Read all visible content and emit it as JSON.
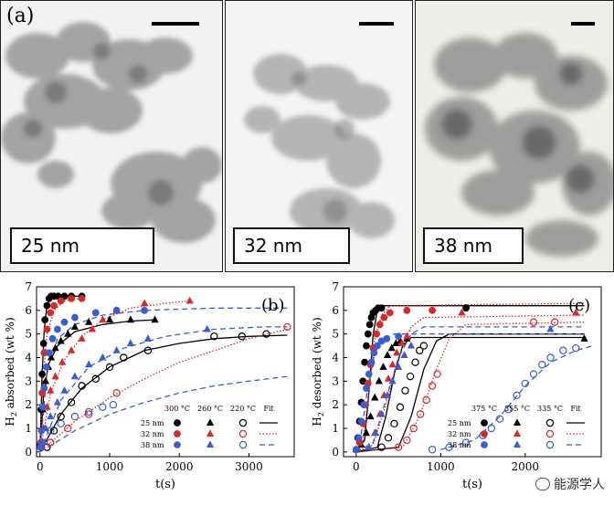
{
  "figure": {
    "tem_panel_label": "(a)",
    "tem": [
      {
        "size_label": "25 nm"
      },
      {
        "size_label": "32 nm"
      },
      {
        "size_label": "38 nm"
      }
    ],
    "watermark": "能源学人"
  },
  "chart_data": [
    {
      "type": "scatter",
      "panel_label": "(b)",
      "ylabel_main": "H",
      "ylabel_sub": "2",
      "ylabel_rest": " absorbed (wt %)",
      "xlabel": "t(s)",
      "xlim": [
        -50,
        3650
      ],
      "ylim": [
        -0.2,
        7
      ],
      "xticks": [
        0,
        1000,
        2000,
        3000
      ],
      "yticks": [
        0,
        1,
        2,
        3,
        4,
        5,
        6,
        7
      ],
      "legend": {
        "headers": [
          "300 °C",
          "260 °C",
          "220 °C",
          "Fit"
        ],
        "rows": [
          "25 nm",
          "32 nm",
          "38 nm"
        ],
        "placement": "bottom-right"
      },
      "series": [
        {
          "size": "25 nm",
          "temp": "300 °C",
          "marker": "circle-filled",
          "color": "#000000",
          "x": [
            5,
            15,
            30,
            50,
            70,
            100,
            130,
            160,
            200,
            260,
            350,
            450,
            600
          ],
          "y": [
            0.3,
            1.8,
            3.3,
            4.6,
            5.6,
            6.2,
            6.5,
            6.6,
            6.6,
            6.6,
            6.6,
            6.6,
            6.6
          ]
        },
        {
          "size": "25 nm",
          "temp": "260 °C",
          "marker": "triangle-filled",
          "color": "#000000",
          "x": [
            10,
            40,
            80,
            120,
            160,
            220,
            300,
            400,
            500,
            700,
            1000,
            1300,
            1650
          ],
          "y": [
            0.3,
            1.8,
            3.0,
            3.6,
            4.0,
            4.4,
            4.7,
            5.0,
            5.3,
            5.5,
            5.6,
            5.6,
            5.6
          ]
        },
        {
          "size": "25 nm",
          "temp": "220 °C",
          "marker": "circle-open",
          "color": "#000000",
          "x": [
            100,
            200,
            300,
            450,
            600,
            800,
            1000,
            1200,
            1550,
            2500,
            2900,
            3250
          ],
          "y": [
            0.2,
            0.9,
            1.5,
            2.1,
            2.8,
            3.1,
            3.6,
            4.0,
            4.3,
            4.9,
            4.9,
            5.0
          ]
        },
        {
          "size": "32 nm",
          "temp": "300 °C",
          "marker": "circle-filled",
          "color": "#d62a2a",
          "x": [
            10,
            30,
            60,
            100,
            150,
            200,
            300,
            450,
            600
          ],
          "y": [
            0.4,
            2.5,
            4.2,
            5.2,
            5.9,
            6.2,
            6.4,
            6.5,
            6.5
          ]
        },
        {
          "size": "32 nm",
          "temp": "260 °C",
          "marker": "triangle-filled",
          "color": "#d62a2a",
          "x": [
            20,
            50,
            100,
            150,
            220,
            320,
            450,
            600,
            750,
            900,
            1100,
            1500,
            2150
          ],
          "y": [
            0.2,
            1.0,
            1.9,
            2.6,
            3.2,
            3.8,
            4.3,
            4.8,
            5.2,
            5.6,
            6.0,
            6.3,
            6.4
          ]
        },
        {
          "size": "32 nm",
          "temp": "220 °C",
          "marker": "circle-open",
          "color": "#d62a2a",
          "x": [
            150,
            400,
            700,
            1100,
            3550
          ],
          "y": [
            0.4,
            1.0,
            1.6,
            2.5,
            5.3
          ]
        },
        {
          "size": "38 nm",
          "temp": "300 °C",
          "marker": "circle-filled",
          "color": "#3a5fcd",
          "x": [
            5,
            20,
            40,
            60,
            90,
            130,
            180,
            250,
            350,
            500,
            800,
            1100,
            1500
          ],
          "y": [
            0.2,
            0.9,
            1.9,
            2.7,
            3.6,
            4.2,
            4.8,
            5.2,
            5.5,
            5.7,
            5.9,
            6.0,
            6.0
          ]
        },
        {
          "size": "38 nm",
          "temp": "260 °C",
          "marker": "triangle-filled",
          "color": "#3a5fcd",
          "x": [
            30,
            80,
            150,
            250,
            350,
            500,
            700,
            900,
            1100,
            1300,
            1550,
            2400
          ],
          "y": [
            0.4,
            1.0,
            1.5,
            2.1,
            2.6,
            3.2,
            3.7,
            4.0,
            4.3,
            4.6,
            4.8,
            5.2
          ]
        },
        {
          "size": "38 nm",
          "temp": "220 °C",
          "marker": "circle-open",
          "color": "#3a5fcd",
          "x": [
            30,
            150,
            300,
            500,
            700,
            900,
            1050
          ],
          "y": [
            0.4,
            0.9,
            1.2,
            1.5,
            1.7,
            1.9,
            2.0
          ]
        }
      ],
      "fits": [
        {
          "color": "#000000",
          "style": "solid",
          "x": [
            0,
            30,
            60,
            100,
            150,
            250,
            600
          ],
          "y": [
            0,
            3.3,
            5.2,
            6.2,
            6.5,
            6.6,
            6.6
          ]
        },
        {
          "color": "#000000",
          "style": "solid",
          "x": [
            0,
            50,
            120,
            250,
            500,
            900,
            1300,
            1650
          ],
          "y": [
            0,
            2.4,
            3.7,
            4.5,
            5.1,
            5.4,
            5.55,
            5.6
          ]
        },
        {
          "color": "#000000",
          "style": "solid",
          "x": [
            0,
            300,
            600,
            1000,
            1500,
            2000,
            2500,
            3000,
            3550
          ],
          "y": [
            0,
            1.6,
            2.7,
            3.6,
            4.3,
            4.6,
            4.8,
            4.9,
            4.95
          ]
        },
        {
          "color": "#d62a2a",
          "style": "dotted",
          "x": [
            0,
            40,
            100,
            200,
            350,
            600
          ],
          "y": [
            0,
            3.0,
            5.0,
            6.0,
            6.4,
            6.5
          ]
        },
        {
          "color": "#d62a2a",
          "style": "dotted",
          "x": [
            0,
            150,
            350,
            600,
            900,
            1300,
            1800,
            2150
          ],
          "y": [
            0,
            2.5,
            3.9,
            4.9,
            5.6,
            6.1,
            6.3,
            6.4
          ]
        },
        {
          "color": "#d62a2a",
          "style": "dotted",
          "x": [
            0,
            500,
            1000,
            1500,
            2000,
            2500,
            3000,
            3550
          ],
          "y": [
            0,
            1.3,
            2.3,
            3.1,
            3.8,
            4.3,
            4.8,
            5.2
          ]
        },
        {
          "color": "#3a5fcd",
          "style": "dashed",
          "x": [
            0,
            100,
            250,
            500,
            900,
            1500,
            2500,
            3550
          ],
          "y": [
            0,
            3.4,
            4.8,
            5.4,
            5.8,
            6.0,
            6.1,
            6.1
          ]
        },
        {
          "color": "#3a5fcd",
          "style": "dashed",
          "x": [
            0,
            300,
            700,
            1200,
            1800,
            2500,
            3200,
            3550
          ],
          "y": [
            0,
            2.2,
            3.6,
            4.4,
            4.9,
            5.2,
            5.3,
            5.3
          ]
        },
        {
          "color": "#3a5fcd",
          "style": "dashed",
          "x": [
            0,
            500,
            1000,
            1500,
            2000,
            2500,
            3000,
            3550
          ],
          "y": [
            0,
            0.9,
            1.6,
            2.1,
            2.5,
            2.8,
            3.0,
            3.2
          ]
        }
      ]
    },
    {
      "type": "scatter",
      "panel_label": "(c)",
      "ylabel_main": "H",
      "ylabel_sub": "2",
      "ylabel_rest": " desorbed (wt %)",
      "xlabel": "t(s)",
      "xlim": [
        -150,
        2900
      ],
      "ylim": [
        -0.2,
        7
      ],
      "xticks": [
        0,
        1000,
        2000
      ],
      "yticks": [
        0,
        1,
        2,
        3,
        4,
        5,
        6,
        7
      ],
      "legend": {
        "headers": [
          "375 °C",
          "355 °C",
          "335 °C",
          "Fit"
        ],
        "rows": [
          "25 nm",
          "32 nm",
          "38 nm"
        ],
        "placement": "bottom-right"
      },
      "series": [
        {
          "size": "25 nm",
          "temp": "375 °C",
          "marker": "circle-filled",
          "color": "#000000",
          "x": [
            0,
            20,
            40,
            60,
            80,
            100,
            120,
            140,
            160,
            180,
            200,
            230,
            260,
            300,
            1300
          ],
          "y": [
            0.1,
            0.6,
            1.3,
            2.1,
            3.0,
            3.8,
            4.5,
            5.0,
            5.4,
            5.7,
            5.9,
            6.0,
            6.1,
            6.1,
            6.1
          ]
        },
        {
          "size": "25 nm",
          "temp": "355 °C",
          "marker": "triangle-filled",
          "color": "#000000",
          "x": [
            0,
            60,
            120,
            170,
            220,
            270,
            320,
            370,
            420,
            470,
            520,
            600,
            2700
          ],
          "y": [
            0.1,
            0.3,
            0.8,
            1.5,
            2.3,
            3.0,
            3.6,
            4.1,
            4.4,
            4.6,
            4.7,
            4.8,
            4.8
          ]
        },
        {
          "size": "25 nm",
          "temp": "335 °C",
          "marker": "circle-open",
          "color": "#000000",
          "x": [
            300,
            380,
            450,
            520,
            580,
            640,
            700,
            750,
            800
          ],
          "y": [
            0.2,
            0.6,
            1.2,
            1.9,
            2.6,
            3.2,
            3.8,
            4.3,
            4.5
          ]
        },
        {
          "size": "32 nm",
          "temp": "375 °C",
          "marker": "circle-filled",
          "color": "#d62a2a",
          "x": [
            0,
            40,
            80,
            110,
            140,
            170,
            200,
            240,
            280,
            330,
            400,
            600,
            900
          ],
          "y": [
            0.1,
            0.4,
            1.2,
            2.0,
            2.9,
            3.7,
            4.4,
            5.0,
            5.4,
            5.7,
            5.9,
            6.0,
            6.0
          ]
        },
        {
          "size": "32 nm",
          "temp": "355 °C",
          "marker": "triangle-filled",
          "color": "#d62a2a",
          "x": [
            150,
            220,
            280,
            330,
            380,
            430,
            480,
            540,
            600,
            1250,
            2600
          ],
          "y": [
            0.2,
            0.8,
            1.6,
            2.4,
            3.1,
            3.7,
            4.2,
            4.6,
            4.9,
            5.9,
            5.9
          ]
        },
        {
          "size": "32 nm",
          "temp": "335 °C",
          "marker": "circle-open",
          "color": "#d62a2a",
          "x": [
            500,
            600,
            680,
            760,
            830,
            900,
            960,
            2100,
            2350
          ],
          "y": [
            0.2,
            0.5,
            1.0,
            1.6,
            2.2,
            2.8,
            3.3,
            5.5,
            5.5
          ]
        },
        {
          "size": "38 nm",
          "temp": "375 °C",
          "marker": "circle-filled",
          "color": "#3a5fcd",
          "x": [
            0,
            30,
            60,
            90,
            120,
            150,
            180,
            210,
            250,
            300,
            360,
            500
          ],
          "y": [
            0.1,
            0.6,
            1.3,
            2.0,
            2.7,
            3.3,
            3.8,
            4.2,
            4.5,
            4.7,
            4.8,
            4.9
          ]
        },
        {
          "size": "38 nm",
          "temp": "355 °C",
          "marker": "triangle-filled",
          "color": "#3a5fcd",
          "x": [
            150,
            230,
            300,
            370,
            430,
            500,
            570,
            650,
            2300
          ],
          "y": [
            0.2,
            0.8,
            1.6,
            2.4,
            3.0,
            3.6,
            4.1,
            4.5,
            5.2
          ]
        },
        {
          "size": "38 nm",
          "temp": "335 °C",
          "marker": "circle-open",
          "color": "#3a5fcd",
          "x": [
            900,
            1100,
            1300,
            1500,
            1600,
            1700,
            1800,
            1900,
            2000,
            2100,
            2200,
            2300,
            2450,
            2600
          ],
          "y": [
            0.1,
            0.2,
            0.4,
            0.7,
            1.0,
            1.4,
            1.8,
            2.4,
            2.9,
            3.3,
            3.7,
            4.0,
            4.3,
            4.4
          ]
        }
      ],
      "fits": [
        {
          "color": "#000000",
          "style": "solid",
          "x": [
            0,
            100,
            150,
            200,
            250,
            300,
            2700
          ],
          "y": [
            0,
            0.5,
            2.5,
            5.0,
            6.0,
            6.2,
            6.2
          ]
        },
        {
          "color": "#000000",
          "style": "solid",
          "x": [
            0,
            250,
            350,
            450,
            550,
            650,
            2700
          ],
          "y": [
            0,
            0.2,
            1.5,
            3.3,
            4.5,
            4.85,
            4.85
          ]
        },
        {
          "color": "#000000",
          "style": "solid",
          "x": [
            0,
            500,
            650,
            800,
            950,
            1100,
            2700
          ],
          "y": [
            0,
            0.2,
            1.5,
            3.5,
            4.7,
            5.0,
            5.0
          ]
        },
        {
          "color": "#d62a2a",
          "style": "dotted",
          "x": [
            0,
            80,
            150,
            220,
            300,
            400,
            2700
          ],
          "y": [
            0,
            0.5,
            2.5,
            4.8,
            5.8,
            6.2,
            6.3
          ]
        },
        {
          "color": "#d62a2a",
          "style": "dotted",
          "x": [
            0,
            200,
            350,
            500,
            650,
            800,
            2700
          ],
          "y": [
            0,
            0.3,
            2.0,
            4.0,
            5.3,
            5.7,
            5.8
          ]
        },
        {
          "color": "#d62a2a",
          "style": "dotted",
          "x": [
            0,
            550,
            750,
            950,
            1100,
            1300,
            2700
          ],
          "y": [
            0,
            0.2,
            1.5,
            3.5,
            4.8,
            5.4,
            5.5
          ]
        },
        {
          "color": "#3a5fcd",
          "style": "dashed",
          "x": [
            0,
            60,
            140,
            220,
            320,
            450,
            2700
          ],
          "y": [
            0,
            0.8,
            2.8,
            4.2,
            4.8,
            5.0,
            5.0
          ]
        },
        {
          "color": "#3a5fcd",
          "style": "dashed",
          "x": [
            0,
            200,
            350,
            500,
            650,
            800,
            2700
          ],
          "y": [
            0,
            0.4,
            2.2,
            4.0,
            5.0,
            5.3,
            5.3
          ]
        },
        {
          "color": "#3a5fcd",
          "style": "dashed",
          "x": [
            1000,
            1400,
            1700,
            2000,
            2300,
            2600,
            2800
          ],
          "y": [
            0.1,
            0.5,
            1.5,
            2.8,
            3.8,
            4.3,
            4.5
          ]
        }
      ]
    }
  ]
}
